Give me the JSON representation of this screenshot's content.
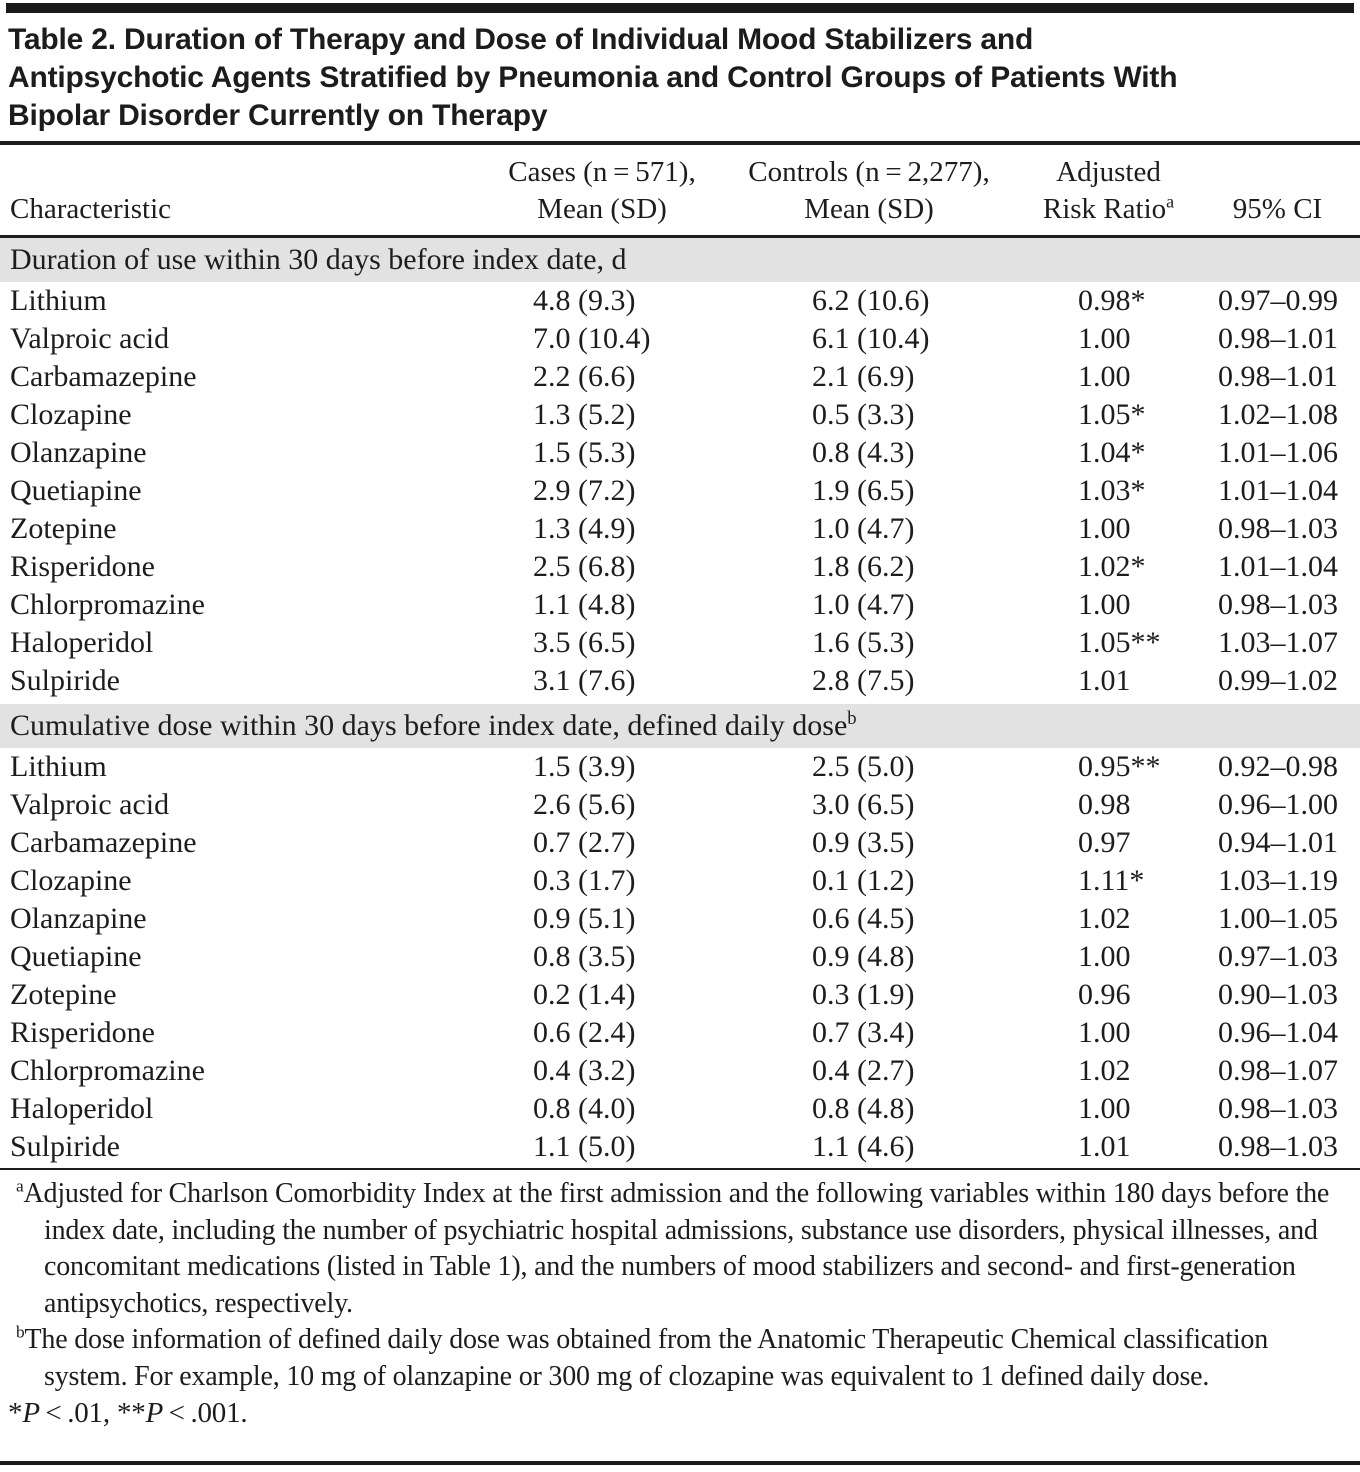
{
  "title_lines": [
    "Table 2. Duration of Therapy and Dose of Individual Mood Stabilizers and",
    "Antipsychotic Agents Stratified by Pneumonia and Control Groups of Patients With",
    "Bipolar Disorder Currently on Therapy"
  ],
  "columns": {
    "characteristic": "Characteristic",
    "cases_line1": "Cases (n = 571),",
    "cases_line2": "Mean (SD)",
    "controls_line1": "Controls (n = 2,277),",
    "controls_line2": "Mean (SD)",
    "risk_line1": "Adjusted",
    "risk_line2": "Risk Ratio",
    "risk_sup": "a",
    "ci": "95% CI"
  },
  "sections": [
    {
      "label": "Duration of use within 30 days before index date, d",
      "label_sup": "",
      "rows": [
        {
          "name": "Lithium",
          "cases": "4.8 (9.3)",
          "controls": "6.2 (10.6)",
          "risk_ratio": "0.98*",
          "ci": "0.97–0.99"
        },
        {
          "name": "Valproic acid",
          "cases": "7.0 (10.4)",
          "controls": "6.1 (10.4)",
          "risk_ratio": "1.00",
          "ci": "0.98–1.01"
        },
        {
          "name": "Carbamazepine",
          "cases": "2.2 (6.6)",
          "controls": "2.1 (6.9)",
          "risk_ratio": "1.00",
          "ci": "0.98–1.01"
        },
        {
          "name": "Clozapine",
          "cases": "1.3 (5.2)",
          "controls": "0.5 (3.3)",
          "risk_ratio": "1.05*",
          "ci": "1.02–1.08"
        },
        {
          "name": "Olanzapine",
          "cases": "1.5 (5.3)",
          "controls": "0.8 (4.3)",
          "risk_ratio": "1.04*",
          "ci": "1.01–1.06"
        },
        {
          "name": "Quetiapine",
          "cases": "2.9 (7.2)",
          "controls": "1.9 (6.5)",
          "risk_ratio": "1.03*",
          "ci": "1.01–1.04"
        },
        {
          "name": "Zotepine",
          "cases": "1.3 (4.9)",
          "controls": "1.0 (4.7)",
          "risk_ratio": "1.00",
          "ci": "0.98–1.03"
        },
        {
          "name": "Risperidone",
          "cases": "2.5 (6.8)",
          "controls": "1.8 (6.2)",
          "risk_ratio": "1.02*",
          "ci": "1.01–1.04"
        },
        {
          "name": "Chlorpromazine",
          "cases": "1.1 (4.8)",
          "controls": "1.0 (4.7)",
          "risk_ratio": "1.00",
          "ci": "0.98–1.03"
        },
        {
          "name": "Haloperidol",
          "cases": "3.5 (6.5)",
          "controls": "1.6 (5.3)",
          "risk_ratio": "1.05**",
          "ci": "1.03–1.07"
        },
        {
          "name": "Sulpiride",
          "cases": "3.1 (7.6)",
          "controls": "2.8 (7.5)",
          "risk_ratio": "1.01",
          "ci": "0.99–1.02"
        }
      ]
    },
    {
      "label": "Cumulative dose within 30 days before index date, defined daily dose",
      "label_sup": "b",
      "rows": [
        {
          "name": "Lithium",
          "cases": "1.5 (3.9)",
          "controls": "2.5 (5.0)",
          "risk_ratio": "0.95**",
          "ci": "0.92–0.98"
        },
        {
          "name": "Valproic acid",
          "cases": "2.6 (5.6)",
          "controls": "3.0 (6.5)",
          "risk_ratio": "0.98",
          "ci": "0.96–1.00"
        },
        {
          "name": "Carbamazepine",
          "cases": "0.7 (2.7)",
          "controls": "0.9 (3.5)",
          "risk_ratio": "0.97",
          "ci": "0.94–1.01"
        },
        {
          "name": "Clozapine",
          "cases": "0.3 (1.7)",
          "controls": "0.1 (1.2)",
          "risk_ratio": "1.11*",
          "ci": "1.03–1.19"
        },
        {
          "name": "Olanzapine",
          "cases": "0.9 (5.1)",
          "controls": "0.6 (4.5)",
          "risk_ratio": "1.02",
          "ci": "1.00–1.05"
        },
        {
          "name": "Quetiapine",
          "cases": "0.8 (3.5)",
          "controls": "0.9 (4.8)",
          "risk_ratio": "1.00",
          "ci": "0.97–1.03"
        },
        {
          "name": "Zotepine",
          "cases": "0.2 (1.4)",
          "controls": "0.3 (1.9)",
          "risk_ratio": "0.96",
          "ci": "0.90–1.03"
        },
        {
          "name": "Risperidone",
          "cases": "0.6 (2.4)",
          "controls": "0.7 (3.4)",
          "risk_ratio": "1.00",
          "ci": "0.96–1.04"
        },
        {
          "name": "Chlorpromazine",
          "cases": "0.4 (3.2)",
          "controls": "0.4 (2.7)",
          "risk_ratio": "1.02",
          "ci": "0.98–1.07"
        },
        {
          "name": "Haloperidol",
          "cases": "0.8 (4.0)",
          "controls": "0.8 (4.8)",
          "risk_ratio": "1.00",
          "ci": "0.98–1.03"
        },
        {
          "name": "Sulpiride",
          "cases": "1.1 (5.0)",
          "controls": "1.1 (4.6)",
          "risk_ratio": "1.01",
          "ci": "0.98–1.03"
        }
      ]
    }
  ],
  "footnotes": [
    {
      "marker": "a",
      "text": "Adjusted for Charlson Comorbidity Index at the first admission and the following variables within 180 days before the index date, including the number of psychiatric hospital admissions, substance use disorders, physical illnesses, and concomitant medications (listed in Table 1), and the numbers of mood stabilizers and second- and first-generation antipsychotics, respectively."
    },
    {
      "marker": "b",
      "text": "The dose information of defined daily dose was obtained from the Anatomic Therapeutic Chemical classification system. For example, 10 mg of olanzapine or 300 mg of clozapine was equivalent to 1 defined daily dose."
    }
  ],
  "significance_note": {
    "star1": "*",
    "p1": "P",
    "rest1": " < .01, ",
    "star2": "**",
    "p2": "P",
    "rest2": " < .001."
  }
}
